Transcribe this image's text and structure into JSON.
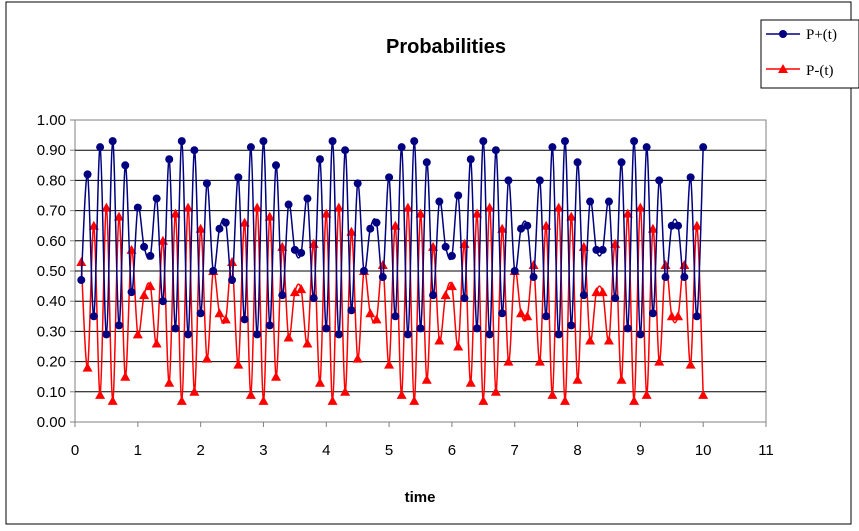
{
  "chart_data": {
    "type": "line",
    "title": "Probabilities",
    "xlabel": "time",
    "ylabel": "",
    "xlim": [
      0,
      11
    ],
    "ylim": [
      0,
      1
    ],
    "xticks": [
      "0",
      "1",
      "2",
      "3",
      "4",
      "5",
      "6",
      "7",
      "8",
      "9",
      "10",
      "11"
    ],
    "yticks": [
      "0.00",
      "0.10",
      "0.20",
      "0.30",
      "0.40",
      "0.50",
      "0.60",
      "0.70",
      "0.80",
      "0.90",
      "1.00"
    ],
    "grid": true,
    "legend_position": "top-right",
    "series": [
      {
        "name": "P+(t)",
        "color": "#000080",
        "marker": "circle",
        "points": [
          [
            0.1,
            0.47
          ],
          [
            0.2,
            0.82
          ],
          [
            0.3,
            0.35
          ],
          [
            0.4,
            0.91
          ],
          [
            0.5,
            0.29
          ],
          [
            0.6,
            0.93
          ],
          [
            0.7,
            0.32
          ],
          [
            0.8,
            0.85
          ],
          [
            0.9,
            0.43
          ],
          [
            1.0,
            0.71
          ],
          [
            1.1,
            0.58
          ],
          [
            1.2,
            0.55
          ],
          [
            1.3,
            0.74
          ],
          [
            1.4,
            0.4
          ],
          [
            1.5,
            0.87
          ],
          [
            1.6,
            0.31
          ],
          [
            1.7,
            0.93
          ],
          [
            1.8,
            0.29
          ],
          [
            1.9,
            0.9
          ],
          [
            2.0,
            0.36
          ],
          [
            2.1,
            0.79
          ],
          [
            2.2,
            0.5
          ],
          [
            2.3,
            0.64
          ],
          [
            2.4,
            0.66
          ],
          [
            2.5,
            0.47
          ],
          [
            2.6,
            0.81
          ],
          [
            2.7,
            0.34
          ],
          [
            2.8,
            0.91
          ],
          [
            2.9,
            0.29
          ],
          [
            3.0,
            0.93
          ],
          [
            3.1,
            0.32
          ],
          [
            3.2,
            0.85
          ],
          [
            3.3,
            0.42
          ],
          [
            3.4,
            0.72
          ],
          [
            3.5,
            0.57
          ],
          [
            3.6,
            0.56
          ],
          [
            3.7,
            0.74
          ],
          [
            3.8,
            0.41
          ],
          [
            3.9,
            0.87
          ],
          [
            4.0,
            0.31
          ],
          [
            4.1,
            0.93
          ],
          [
            4.2,
            0.29
          ],
          [
            4.3,
            0.9
          ],
          [
            4.4,
            0.37
          ],
          [
            4.5,
            0.79
          ],
          [
            4.6,
            0.5
          ],
          [
            4.7,
            0.64
          ],
          [
            4.8,
            0.66
          ],
          [
            4.9,
            0.48
          ],
          [
            5.0,
            0.81
          ],
          [
            5.1,
            0.35
          ],
          [
            5.2,
            0.91
          ],
          [
            5.3,
            0.29
          ],
          [
            5.4,
            0.93
          ],
          [
            5.5,
            0.31
          ],
          [
            5.6,
            0.86
          ],
          [
            5.7,
            0.42
          ],
          [
            5.8,
            0.73
          ],
          [
            5.9,
            0.58
          ],
          [
            6.0,
            0.55
          ],
          [
            6.1,
            0.75
          ],
          [
            6.2,
            0.41
          ],
          [
            6.3,
            0.87
          ],
          [
            6.4,
            0.31
          ],
          [
            6.5,
            0.93
          ],
          [
            6.6,
            0.29
          ],
          [
            6.7,
            0.9
          ],
          [
            6.8,
            0.36
          ],
          [
            6.9,
            0.8
          ],
          [
            7.0,
            0.5
          ],
          [
            7.1,
            0.64
          ],
          [
            7.2,
            0.65
          ],
          [
            7.3,
            0.48
          ],
          [
            7.4,
            0.8
          ],
          [
            7.5,
            0.35
          ],
          [
            7.6,
            0.91
          ],
          [
            7.7,
            0.29
          ],
          [
            7.8,
            0.93
          ],
          [
            7.9,
            0.32
          ],
          [
            8.0,
            0.86
          ],
          [
            8.1,
            0.42
          ],
          [
            8.2,
            0.73
          ],
          [
            8.3,
            0.57
          ],
          [
            8.4,
            0.57
          ],
          [
            8.5,
            0.73
          ],
          [
            8.6,
            0.41
          ],
          [
            8.7,
            0.86
          ],
          [
            8.8,
            0.31
          ],
          [
            8.9,
            0.93
          ],
          [
            9.0,
            0.29
          ],
          [
            9.1,
            0.91
          ],
          [
            9.2,
            0.36
          ],
          [
            9.3,
            0.8
          ],
          [
            9.4,
            0.48
          ],
          [
            9.5,
            0.65
          ],
          [
            9.6,
            0.65
          ],
          [
            9.7,
            0.48
          ],
          [
            9.8,
            0.81
          ],
          [
            9.9,
            0.35
          ],
          [
            10.0,
            0.91
          ]
        ]
      },
      {
        "name": "P-(t)",
        "color": "#ff0000",
        "marker": "triangle",
        "points": [
          [
            0.1,
            0.53
          ],
          [
            0.2,
            0.18
          ],
          [
            0.3,
            0.65
          ],
          [
            0.4,
            0.09
          ],
          [
            0.5,
            0.71
          ],
          [
            0.6,
            0.07
          ],
          [
            0.7,
            0.68
          ],
          [
            0.8,
            0.15
          ],
          [
            0.9,
            0.57
          ],
          [
            1.0,
            0.29
          ],
          [
            1.1,
            0.42
          ],
          [
            1.2,
            0.45
          ],
          [
            1.3,
            0.26
          ],
          [
            1.4,
            0.6
          ],
          [
            1.5,
            0.13
          ],
          [
            1.6,
            0.69
          ],
          [
            1.7,
            0.07
          ],
          [
            1.8,
            0.71
          ],
          [
            1.9,
            0.1
          ],
          [
            2.0,
            0.64
          ],
          [
            2.1,
            0.21
          ],
          [
            2.2,
            0.5
          ],
          [
            2.3,
            0.36
          ],
          [
            2.4,
            0.34
          ],
          [
            2.5,
            0.53
          ],
          [
            2.6,
            0.19
          ],
          [
            2.7,
            0.66
          ],
          [
            2.8,
            0.09
          ],
          [
            2.9,
            0.71
          ],
          [
            3.0,
            0.07
          ],
          [
            3.1,
            0.68
          ],
          [
            3.2,
            0.15
          ],
          [
            3.3,
            0.58
          ],
          [
            3.4,
            0.28
          ],
          [
            3.5,
            0.43
          ],
          [
            3.6,
            0.44
          ],
          [
            3.7,
            0.26
          ],
          [
            3.8,
            0.59
          ],
          [
            3.9,
            0.13
          ],
          [
            4.0,
            0.69
          ],
          [
            4.1,
            0.07
          ],
          [
            4.2,
            0.71
          ],
          [
            4.3,
            0.1
          ],
          [
            4.4,
            0.63
          ],
          [
            4.5,
            0.21
          ],
          [
            4.6,
            0.5
          ],
          [
            4.7,
            0.36
          ],
          [
            4.8,
            0.34
          ],
          [
            4.9,
            0.52
          ],
          [
            5.0,
            0.19
          ],
          [
            5.1,
            0.65
          ],
          [
            5.2,
            0.09
          ],
          [
            5.3,
            0.71
          ],
          [
            5.4,
            0.07
          ],
          [
            5.5,
            0.69
          ],
          [
            5.6,
            0.14
          ],
          [
            5.7,
            0.58
          ],
          [
            5.8,
            0.27
          ],
          [
            5.9,
            0.42
          ],
          [
            6.0,
            0.45
          ],
          [
            6.1,
            0.25
          ],
          [
            6.2,
            0.59
          ],
          [
            6.3,
            0.13
          ],
          [
            6.4,
            0.69
          ],
          [
            6.5,
            0.07
          ],
          [
            6.6,
            0.71
          ],
          [
            6.7,
            0.1
          ],
          [
            6.8,
            0.64
          ],
          [
            6.9,
            0.2
          ],
          [
            7.0,
            0.5
          ],
          [
            7.1,
            0.36
          ],
          [
            7.2,
            0.35
          ],
          [
            7.3,
            0.52
          ],
          [
            7.4,
            0.2
          ],
          [
            7.5,
            0.65
          ],
          [
            7.6,
            0.09
          ],
          [
            7.7,
            0.71
          ],
          [
            7.8,
            0.07
          ],
          [
            7.9,
            0.68
          ],
          [
            8.0,
            0.14
          ],
          [
            8.1,
            0.58
          ],
          [
            8.2,
            0.27
          ],
          [
            8.3,
            0.43
          ],
          [
            8.4,
            0.43
          ],
          [
            8.5,
            0.27
          ],
          [
            8.6,
            0.59
          ],
          [
            8.7,
            0.14
          ],
          [
            8.8,
            0.69
          ],
          [
            8.9,
            0.07
          ],
          [
            9.0,
            0.71
          ],
          [
            9.1,
            0.09
          ],
          [
            9.2,
            0.64
          ],
          [
            9.3,
            0.2
          ],
          [
            9.4,
            0.52
          ],
          [
            9.5,
            0.35
          ],
          [
            9.6,
            0.35
          ],
          [
            9.7,
            0.52
          ],
          [
            9.8,
            0.19
          ],
          [
            9.9,
            0.65
          ],
          [
            10.0,
            0.09
          ]
        ]
      }
    ]
  }
}
